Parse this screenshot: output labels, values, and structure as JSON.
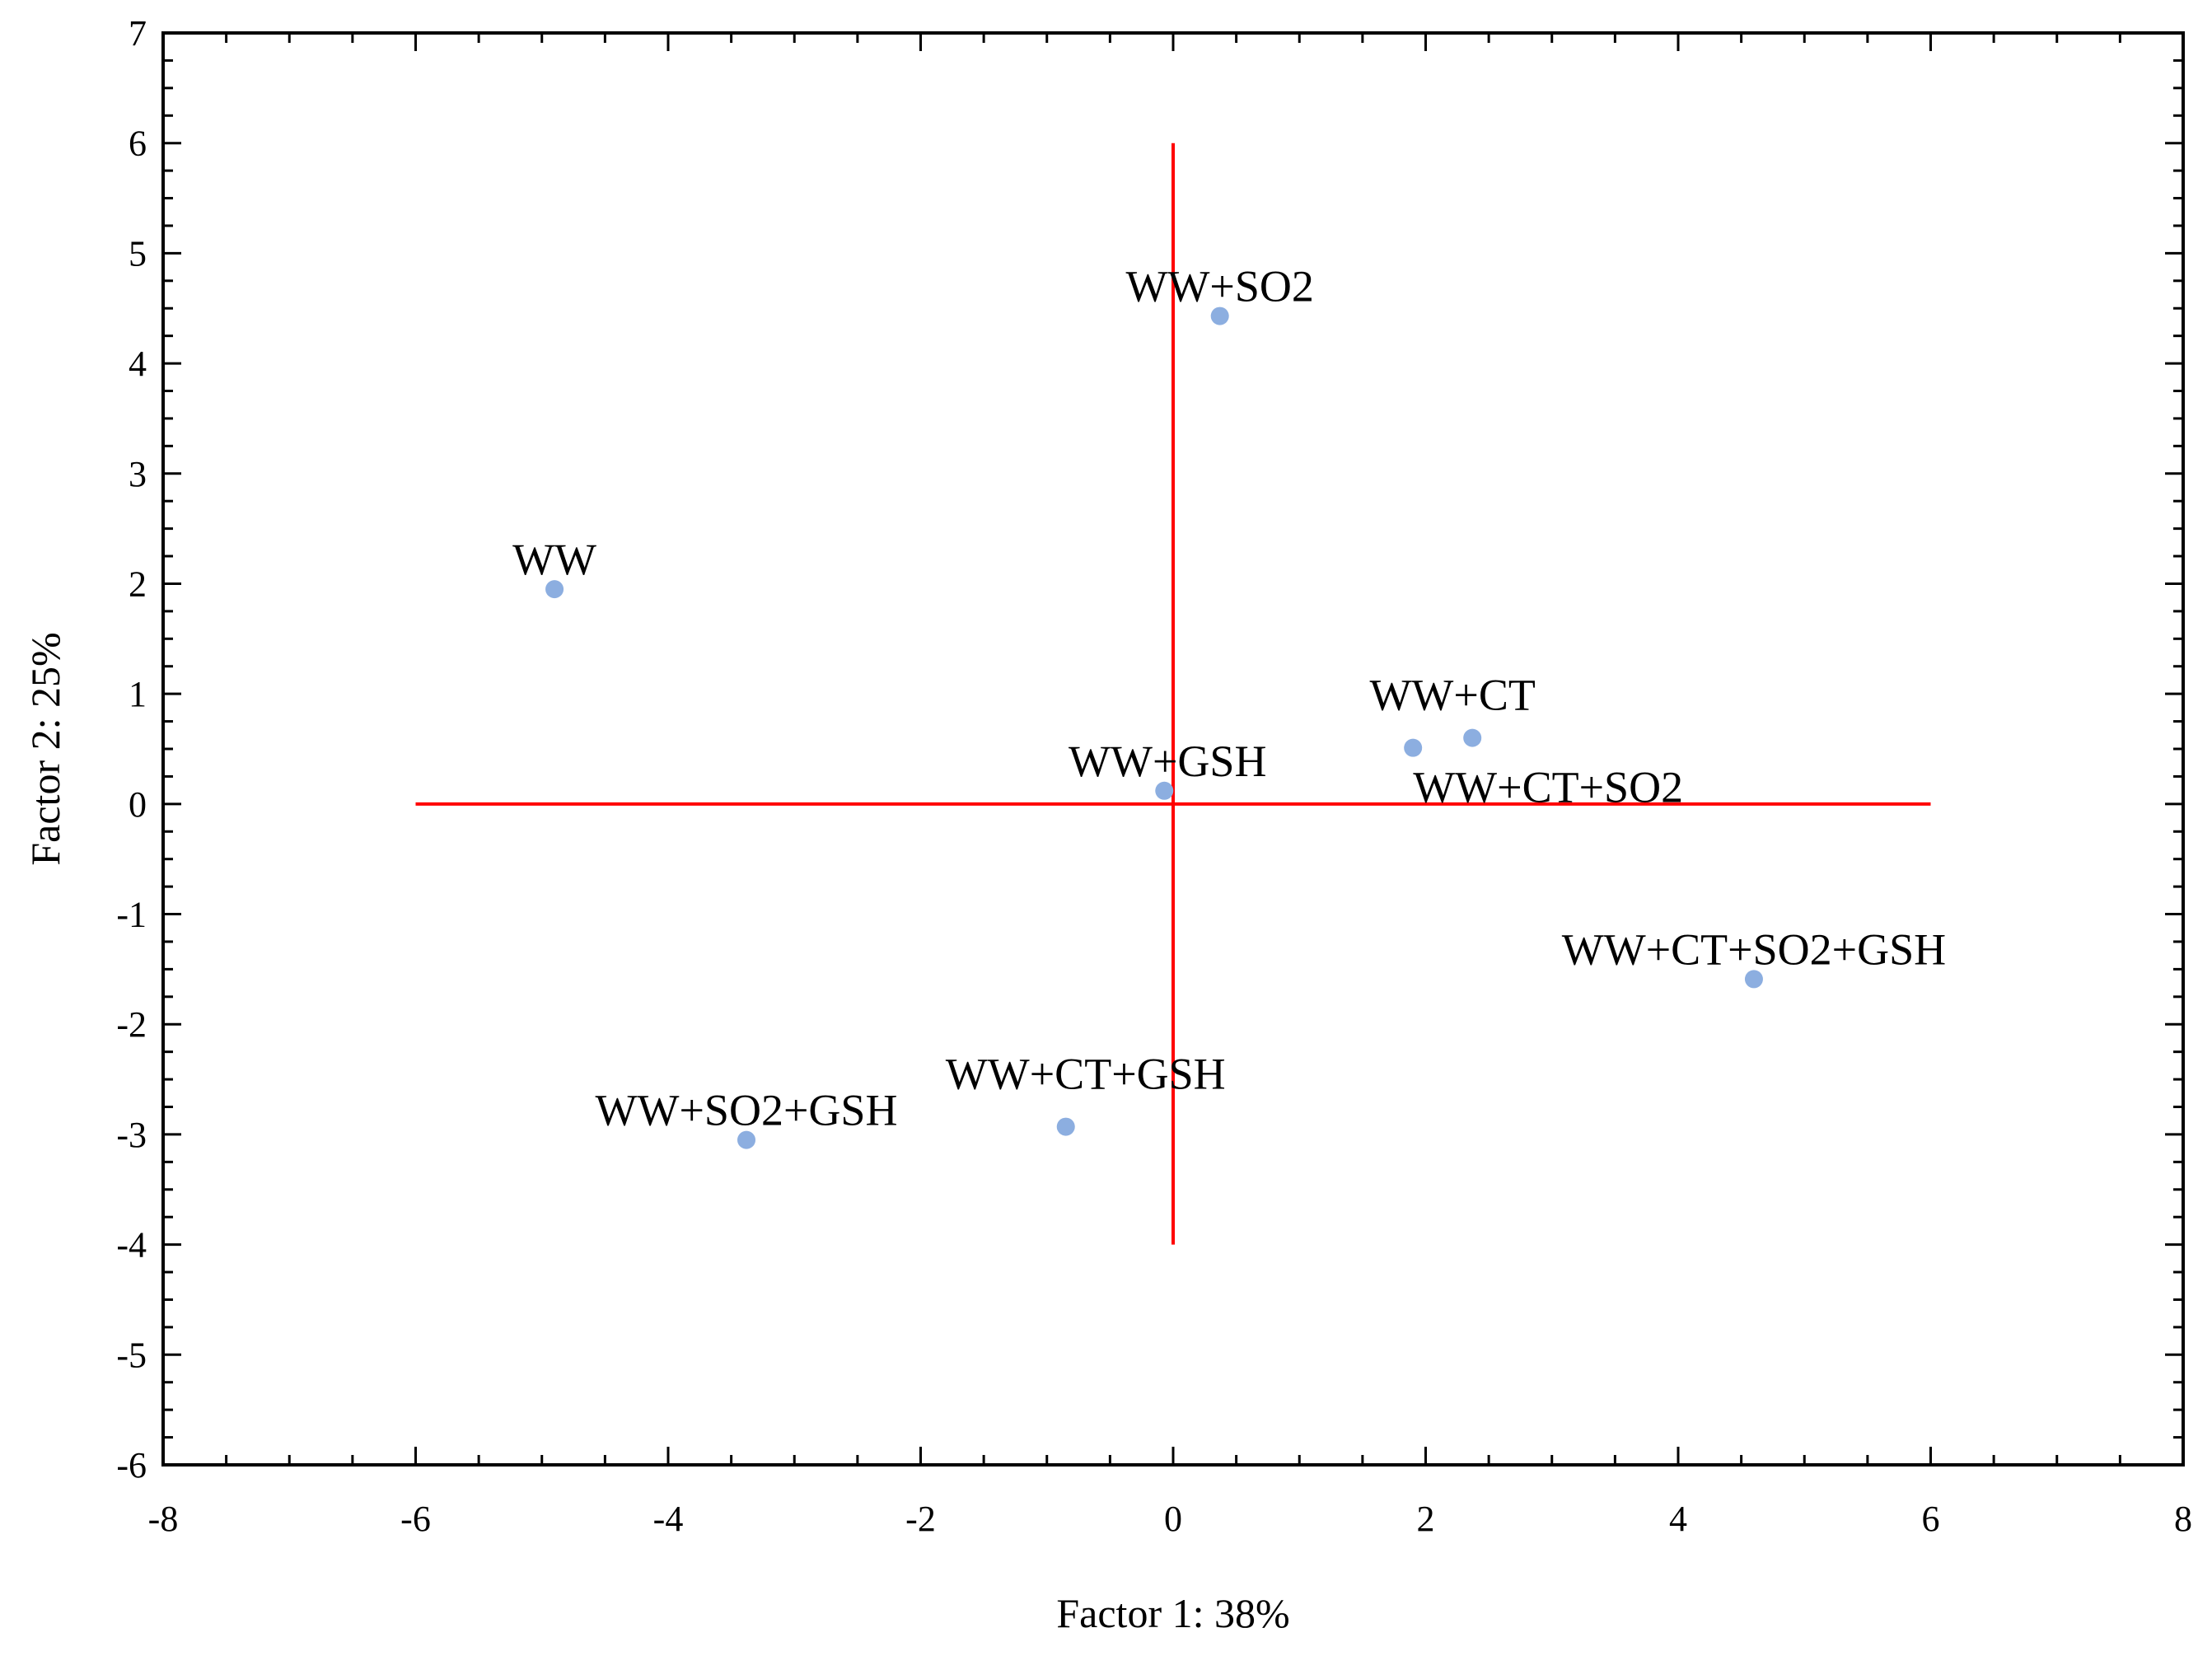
{
  "chart_data": {
    "type": "scatter",
    "xlabel": "Factor 1: 38%",
    "ylabel": "Factor 2: 25%",
    "xlim": [
      -8,
      8
    ],
    "ylim": [
      -6,
      7
    ],
    "x_ticks": [
      -8,
      -6,
      -4,
      -2,
      0,
      2,
      4,
      6,
      8
    ],
    "y_ticks": [
      -6,
      -5,
      -4,
      -3,
      -2,
      -1,
      0,
      1,
      2,
      3,
      4,
      5,
      6,
      7
    ],
    "x_tick_labels": [
      "-8",
      "-6",
      "-4",
      "-2",
      "0",
      "2",
      "4",
      "6",
      "8"
    ],
    "y_tick_labels": [
      "-6",
      "-5",
      "-4",
      "-3",
      "-2",
      "-1",
      "0",
      "1",
      "2",
      "3",
      "4",
      "5",
      "6",
      "7"
    ],
    "grid": false,
    "point_color": "#8caee0",
    "reference_line_color": "#ff0000",
    "reference_lines": {
      "horizontal": {
        "y": 0,
        "x_from": -6,
        "x_to": 6
      },
      "vertical": {
        "x": 0,
        "y_from": -4,
        "y_to": 6
      }
    },
    "points": [
      {
        "label": "WW",
        "x": -4.9,
        "y": 1.95
      },
      {
        "label": "WW+SO2",
        "x": 0.37,
        "y": 4.43
      },
      {
        "label": "WW+GSH",
        "x": -0.07,
        "y": 0.12
      },
      {
        "label": "WW+CT",
        "x": 1.9,
        "y": 0.51
      },
      {
        "label": "WW+CT+SO2",
        "x": 2.37,
        "y": 0.6
      },
      {
        "label": "WW+CT+SO2+GSH",
        "x": 4.6,
        "y": -1.59
      },
      {
        "label": "WW+CT+GSH",
        "x": -0.85,
        "y": -2.93
      },
      {
        "label": "WW+SO2+GSH",
        "x": -3.38,
        "y": -3.05
      }
    ]
  }
}
